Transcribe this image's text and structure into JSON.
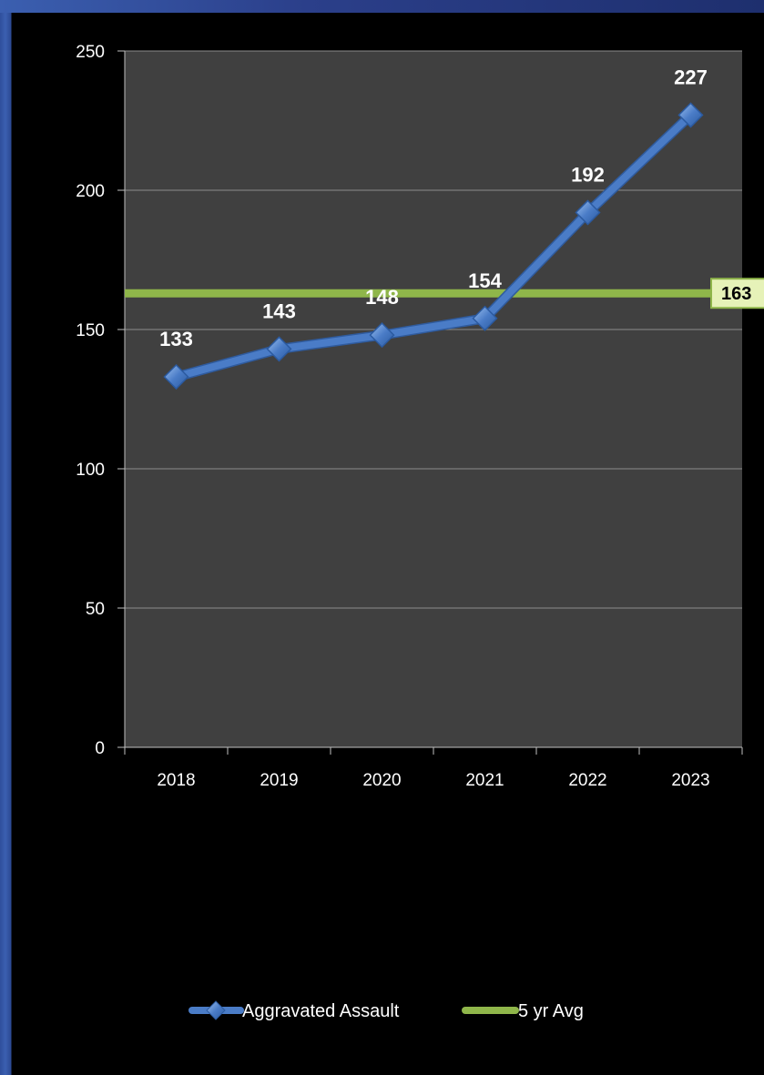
{
  "chart_data": {
    "type": "line",
    "categories": [
      "2018",
      "2019",
      "2020",
      "2021",
      "2022",
      "2023"
    ],
    "series": [
      {
        "name": "Aggravated Assault",
        "values": [
          133,
          143,
          148,
          154,
          192,
          227
        ],
        "color": "#4a7cc7"
      },
      {
        "name": "5 yr Avg",
        "values": [
          163,
          163,
          163,
          163,
          163,
          163
        ],
        "color": "#8fb64a"
      }
    ],
    "average_label": "163",
    "ylim": [
      0,
      250
    ],
    "yticks": [
      "0",
      "50",
      "100",
      "150",
      "200",
      "250"
    ],
    "grid": true,
    "legend": "bottom",
    "plot_background": "#404040"
  }
}
